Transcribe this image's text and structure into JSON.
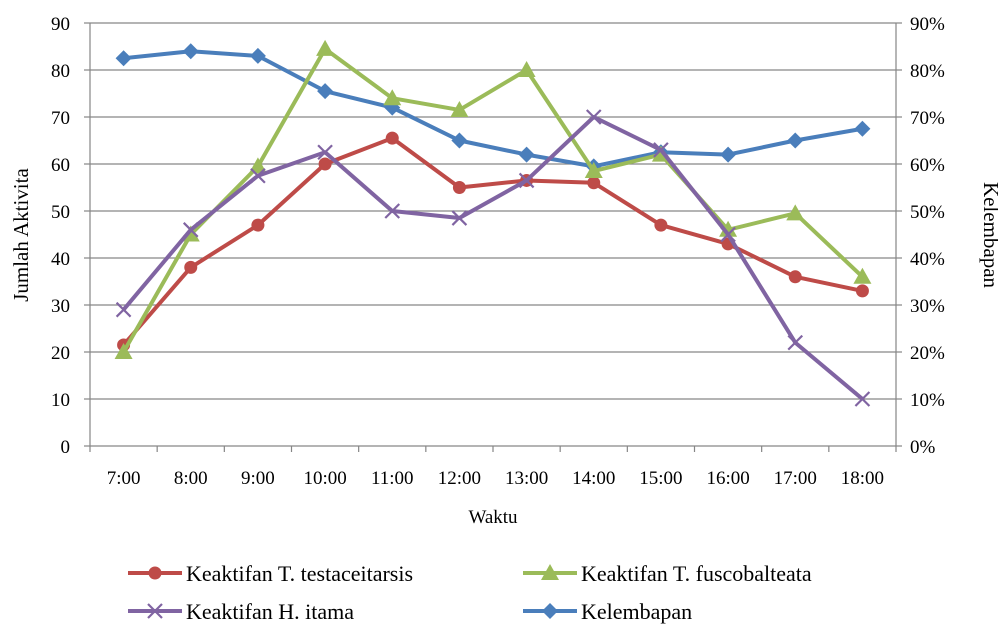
{
  "chart_data": {
    "type": "line",
    "xlabel": "Waktu",
    "ylabel_left": "Jumlah Aktivita",
    "ylabel_right": "Kelembapan",
    "categories": [
      "7:00",
      "8:00",
      "9:00",
      "10:00",
      "11:00",
      "12:00",
      "13:00",
      "14:00",
      "15:00",
      "16:00",
      "17:00",
      "18:00"
    ],
    "ylim_left": [
      0,
      90
    ],
    "ylim_right": [
      0,
      0.9
    ],
    "left_ticks": [
      "0",
      "10",
      "20",
      "30",
      "40",
      "50",
      "60",
      "70",
      "80",
      "90"
    ],
    "right_ticks": [
      "0%",
      "10%",
      "20%",
      "30%",
      "40%",
      "50%",
      "60%",
      "70%",
      "80%",
      "90%"
    ],
    "grid": true,
    "legend_position": "bottom",
    "series": [
      {
        "name": "Keaktifan T. testaceitarsis",
        "axis": "left",
        "color": "#be4b48",
        "marker": "circle",
        "values": [
          21.5,
          38,
          47,
          60,
          65.5,
          55,
          56.5,
          56,
          47,
          43,
          36,
          33
        ]
      },
      {
        "name": "Keaktifan T. fuscobalteata",
        "axis": "left",
        "color": "#9bbb59",
        "marker": "triangle",
        "values": [
          20,
          45,
          59.5,
          84.5,
          74,
          71.5,
          80,
          58.5,
          62,
          46,
          49.5,
          36
        ]
      },
      {
        "name": "Keaktifan H. itama",
        "axis": "left",
        "color": "#8064a2",
        "marker": "x",
        "values": [
          29,
          46,
          57.5,
          62.5,
          50,
          48.5,
          56.5,
          70,
          63,
          45,
          22,
          10
        ]
      },
      {
        "name": "Kelembapan",
        "axis": "right",
        "color": "#4a7ebb",
        "marker": "diamond",
        "values": [
          0.825,
          0.84,
          0.83,
          0.755,
          0.72,
          0.65,
          0.62,
          0.595,
          0.625,
          0.62,
          0.65,
          0.675
        ]
      }
    ]
  }
}
